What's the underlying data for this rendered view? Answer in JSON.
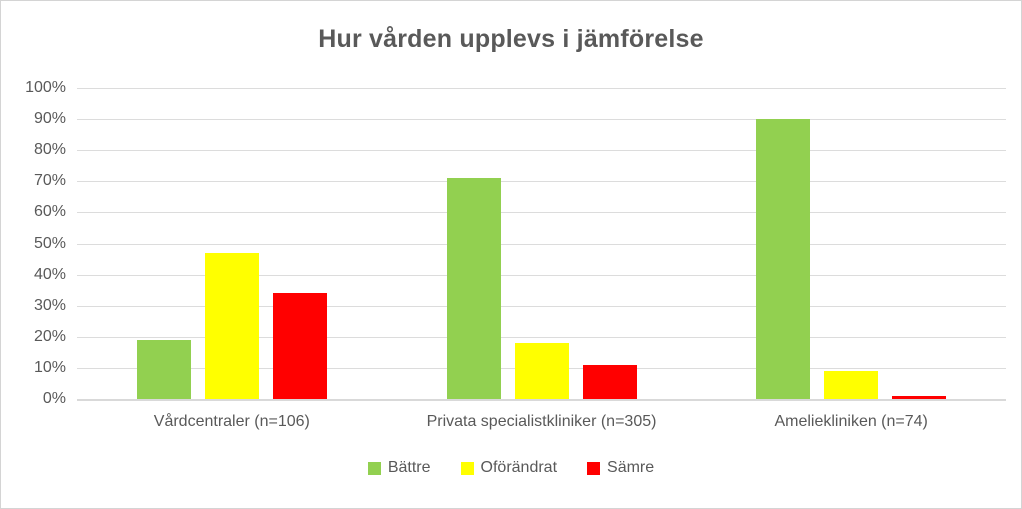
{
  "chart_data": {
    "type": "bar",
    "title": "Hur vården upplevs i jämförelse",
    "categories": [
      "Vårdcentraler (n=106)",
      "Privata specialistkliniker (n=305)",
      "Ameliekliniken (n=74)"
    ],
    "series": [
      {
        "name": "Bättre",
        "color": "#92D050",
        "values": [
          19,
          71,
          90
        ]
      },
      {
        "name": "Oförändrat",
        "color": "#FFFF00",
        "values": [
          47,
          18,
          9
        ]
      },
      {
        "name": "Sämre",
        "color": "#FF0000",
        "values": [
          34,
          11,
          1
        ]
      }
    ],
    "xlabel": "",
    "ylabel": "",
    "ylim": [
      0,
      100
    ],
    "ytick_step": 10,
    "ytick_suffix": "%",
    "grid": true,
    "legend_position": "bottom"
  },
  "colors": {
    "title_text": "#595959",
    "axis_text": "#595959",
    "gridline": "#dcdcdc",
    "axis_line": "#d9d9d9",
    "background": "#ffffff",
    "frame_border": "#d4d4d4"
  }
}
